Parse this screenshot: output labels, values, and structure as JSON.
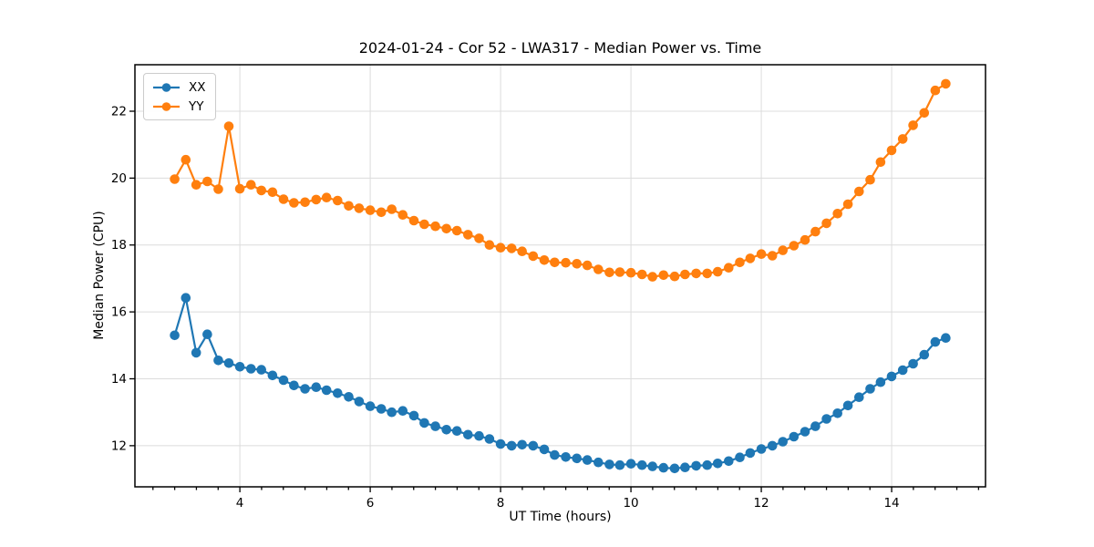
{
  "chart_data": {
    "type": "line",
    "title": "2024-01-24 - Cor 52 - LWA317 - Median Power vs. Time",
    "xlabel": "UT Time (hours)",
    "ylabel": "Median Power (CPU)",
    "marker": "o",
    "grid": true,
    "legend_position": "upper left",
    "xlim": [
      2.39,
      15.44
    ],
    "ylim": [
      10.77,
      23.39
    ],
    "xticks": [
      4,
      6,
      8,
      10,
      12,
      14
    ],
    "yticks": [
      12,
      14,
      16,
      18,
      20,
      22
    ],
    "x_minor_tick_step": 0.3333,
    "x": [
      3.0,
      3.17,
      3.33,
      3.5,
      3.67,
      3.83,
      4.0,
      4.17,
      4.33,
      4.5,
      4.67,
      4.83,
      5.0,
      5.17,
      5.33,
      5.5,
      5.67,
      5.83,
      6.0,
      6.17,
      6.33,
      6.5,
      6.67,
      6.83,
      7.0,
      7.17,
      7.33,
      7.5,
      7.67,
      7.83,
      8.0,
      8.17,
      8.33,
      8.5,
      8.67,
      8.83,
      9.0,
      9.17,
      9.33,
      9.5,
      9.67,
      9.83,
      10.0,
      10.17,
      10.33,
      10.5,
      10.67,
      10.83,
      11.0,
      11.17,
      11.33,
      11.5,
      11.67,
      11.83,
      12.0,
      12.17,
      12.33,
      12.5,
      12.67,
      12.83,
      13.0,
      13.17,
      13.33,
      13.5,
      13.67,
      13.83,
      14.0,
      14.17,
      14.33,
      14.5,
      14.67,
      14.83
    ],
    "series": [
      {
        "name": "XX",
        "color": "#1f77b4",
        "values": [
          15.3,
          16.42,
          14.78,
          15.33,
          14.55,
          14.47,
          14.36,
          14.3,
          14.27,
          14.1,
          13.96,
          13.8,
          13.7,
          13.75,
          13.66,
          13.57,
          13.46,
          13.32,
          13.18,
          13.1,
          13.0,
          13.04,
          12.9,
          12.68,
          12.58,
          12.48,
          12.44,
          12.33,
          12.29,
          12.2,
          12.05,
          12.0,
          12.03,
          12.0,
          11.89,
          11.72,
          11.66,
          11.62,
          11.57,
          11.5,
          11.44,
          11.42,
          11.46,
          11.42,
          11.38,
          11.34,
          11.32,
          11.35,
          11.4,
          11.42,
          11.47,
          11.54,
          11.65,
          11.78,
          11.9,
          12.0,
          12.12,
          12.27,
          12.42,
          12.58,
          12.8,
          12.97,
          13.2,
          13.45,
          13.7,
          13.9,
          14.07,
          14.26,
          14.45,
          14.72,
          15.1,
          15.22
        ]
      },
      {
        "name": "YY",
        "color": "#ff7f0e",
        "values": [
          19.97,
          20.55,
          19.8,
          19.9,
          19.67,
          21.55,
          19.68,
          19.8,
          19.63,
          19.58,
          19.37,
          19.26,
          19.28,
          19.36,
          19.42,
          19.33,
          19.17,
          19.1,
          19.04,
          18.98,
          19.07,
          18.9,
          18.73,
          18.62,
          18.56,
          18.49,
          18.43,
          18.31,
          18.2,
          18.0,
          17.92,
          17.9,
          17.81,
          17.67,
          17.55,
          17.48,
          17.47,
          17.44,
          17.39,
          17.27,
          17.18,
          17.19,
          17.17,
          17.12,
          17.05,
          17.1,
          17.06,
          17.12,
          17.15,
          17.15,
          17.2,
          17.32,
          17.48,
          17.6,
          17.73,
          17.68,
          17.84,
          17.98,
          18.15,
          18.4,
          18.65,
          18.94,
          19.22,
          19.6,
          19.95,
          20.48,
          20.83,
          21.17,
          21.58,
          21.95,
          22.62,
          22.82
        ]
      }
    ],
    "colors": {
      "grid": "#dcdcdc",
      "spine": "#000000",
      "background": "#ffffff"
    }
  }
}
